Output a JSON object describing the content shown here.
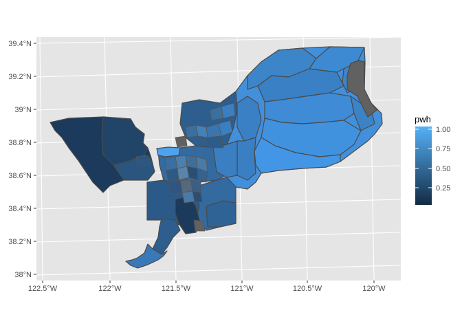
{
  "map": {
    "type": "choropleth",
    "panel_color": "#e5e5e5",
    "grid_color": "#ffffff",
    "boundary_color": "#4a4a4a",
    "na_color": "#616161",
    "y_ticks": [
      "39.4°N",
      "39.2°N",
      "39°N",
      "38.8°N",
      "38.6°N",
      "38.4°N",
      "38.2°N",
      "38°N"
    ],
    "x_ticks": [
      "122.5°W",
      "122°W",
      "121.5°W",
      "121°W",
      "120.5°W",
      "120°W"
    ]
  },
  "legend": {
    "title": "pwh",
    "labels": [
      "1.00",
      "0.75",
      "0.50",
      "0.25"
    ],
    "gradient_low": "#132b43",
    "gradient_high": "#56b1f7"
  }
}
